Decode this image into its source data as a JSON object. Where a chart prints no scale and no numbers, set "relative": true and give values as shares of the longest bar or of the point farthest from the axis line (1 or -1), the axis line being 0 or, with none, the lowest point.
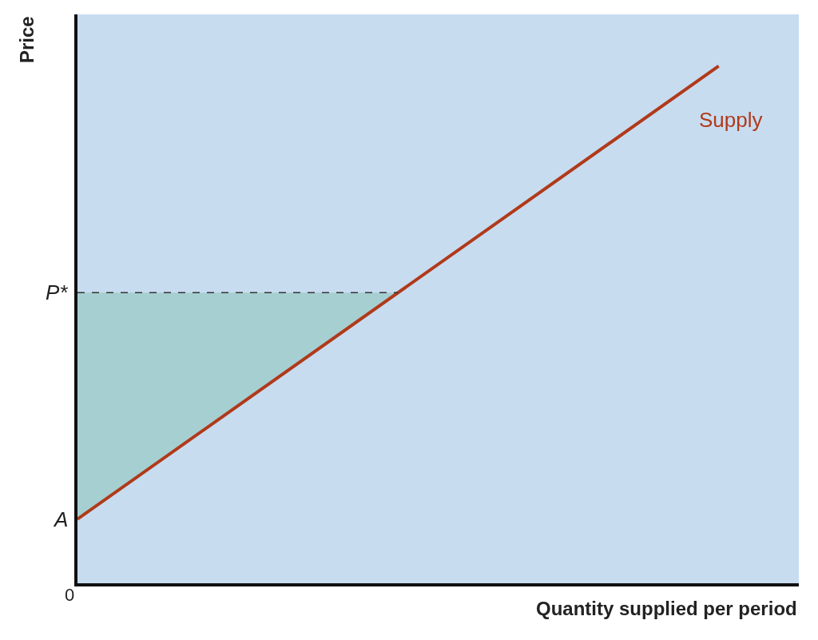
{
  "chart_data": {
    "type": "line",
    "relative": true,
    "xlabel": "Quantity supplied per period",
    "ylabel": "Price",
    "categories": [
      null,
      null,
      null,
      null,
      null,
      null,
      null,
      null,
      null,
      null
    ],
    "series": [
      {
        "name": "Supply",
        "color": "#b03a1a",
        "values": [
          0.124,
          null,
          null,
          null,
          null,
          null,
          null,
          null,
          1,
          null
        ]
      },
      {
        "type": "area",
        "color": "#a6cfd2",
        "values": [
          0.124,
          null,
          null,
          null,
          0.562,
          null,
          null,
          null,
          null,
          null
        ]
      }
    ],
    "ref_lines": [
      {
        "axis": "y",
        "value": 0.562,
        "label": "P*",
        "line_style": "dashed",
        "color": "#333333"
      }
    ],
    "annotations": [
      "A",
      "0"
    ],
    "legend": false,
    "marker": "none",
    "line_style": "solid"
  }
}
